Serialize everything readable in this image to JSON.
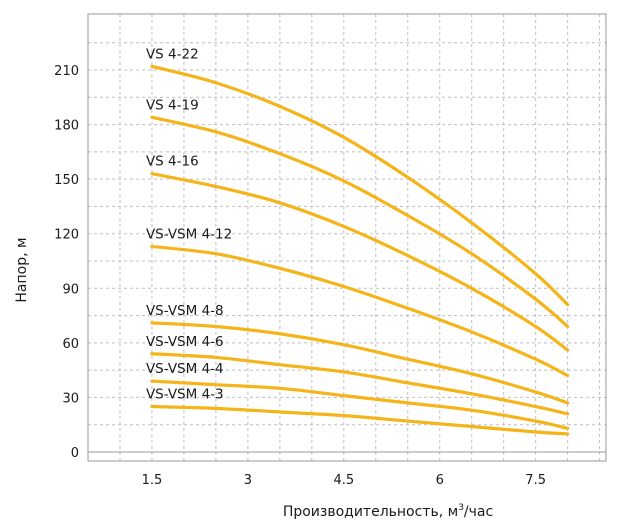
{
  "chart_data": {
    "type": "line",
    "title": "",
    "xlabel": "Производительность, м",
    "xlabel_sup": "3",
    "xlabel_tail": "/час",
    "ylabel": "Напор, м",
    "xlim": [
      0.5,
      8.6
    ],
    "ylim": [
      0,
      239
    ],
    "x_ticks": [
      1.5,
      3,
      4.5,
      6,
      7.5
    ],
    "x_tick_labels": [
      "1.5",
      "3",
      "4.5",
      "6",
      "7.5"
    ],
    "y_ticks": [
      0,
      30,
      60,
      90,
      120,
      150,
      180,
      210
    ],
    "y_tick_labels": [
      "0",
      "30",
      "60",
      "90",
      "120",
      "150",
      "180",
      "210"
    ],
    "grid": true,
    "line_color": "#f4b41a",
    "series": [
      {
        "name": "VS 4-22",
        "x": [
          1.5,
          2.5,
          3.5,
          4.5,
          5.5,
          6.5,
          7.5,
          8.0
        ],
        "y": [
          212,
          203,
          190,
          173,
          151,
          126,
          98,
          81
        ]
      },
      {
        "name": "VS 4-19",
        "x": [
          1.5,
          2.5,
          3.5,
          4.5,
          5.5,
          6.5,
          7.5,
          8.0
        ],
        "y": [
          184,
          176,
          164,
          149,
          130,
          109,
          84,
          69
        ]
      },
      {
        "name": "VS 4-16",
        "x": [
          1.5,
          2.5,
          3.5,
          4.5,
          5.5,
          6.5,
          7.5,
          8.0
        ],
        "y": [
          153,
          146,
          137,
          124,
          108,
          90,
          69,
          56
        ]
      },
      {
        "name": "VS-VSM 4-12",
        "x": [
          1.5,
          2.5,
          3.5,
          4.5,
          5.5,
          6.5,
          7.5,
          8.0
        ],
        "y": [
          113,
          109,
          101,
          91,
          79,
          66,
          51,
          42
        ]
      },
      {
        "name": "VS-VSM 4-8",
        "x": [
          1.5,
          2.5,
          3.5,
          4.5,
          5.5,
          6.5,
          7.5,
          8.0
        ],
        "y": [
          71,
          69,
          65,
          59,
          51,
          43,
          33,
          27
        ]
      },
      {
        "name": "VS-VSM 4-6",
        "x": [
          1.5,
          2.5,
          3.5,
          4.5,
          5.5,
          6.5,
          7.5,
          8.0
        ],
        "y": [
          54,
          52,
          48,
          44,
          38,
          32,
          25,
          21
        ]
      },
      {
        "name": "VS-VSM 4-4",
        "x": [
          1.5,
          2.5,
          3.5,
          4.5,
          5.5,
          6.5,
          7.5,
          8.0
        ],
        "y": [
          39,
          37,
          35,
          31,
          27,
          23,
          17,
          13
        ]
      },
      {
        "name": "VS-VSM 4-3",
        "x": [
          1.5,
          2.5,
          3.5,
          4.5,
          5.5,
          6.5,
          7.5,
          8.0
        ],
        "y": [
          25,
          24,
          22,
          20,
          17,
          14,
          11,
          10
        ]
      }
    ]
  }
}
